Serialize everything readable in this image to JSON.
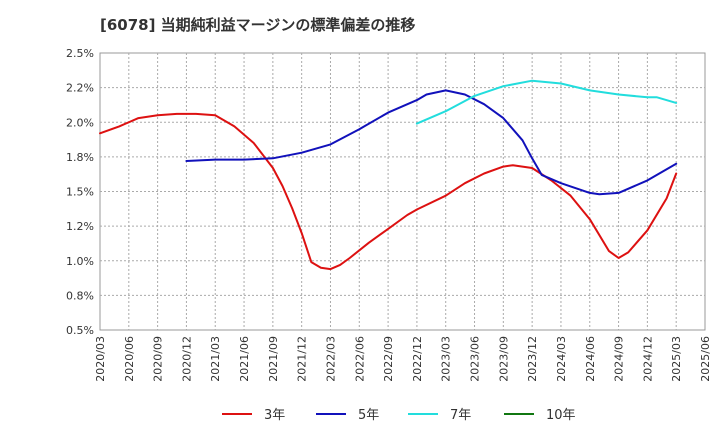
{
  "chart_data": {
    "type": "line",
    "title": "[6078]  当期純利益マージンの標準偏差の推移",
    "ylim": [
      0.5,
      2.5
    ],
    "y_ticks": [
      "0.5%",
      "0.8%",
      "1.0%",
      "1.2%",
      "1.5%",
      "1.8%",
      "2.0%",
      "2.2%",
      "2.5%"
    ],
    "x_ticks": [
      "2020/03",
      "2020/06",
      "2020/09",
      "2020/12",
      "2021/03",
      "2021/06",
      "2021/09",
      "2021/12",
      "2022/03",
      "2022/06",
      "2022/09",
      "2022/12",
      "2023/03",
      "2023/06",
      "2023/09",
      "2023/12",
      "2024/03",
      "2024/06",
      "2024/09",
      "2024/12",
      "2025/03",
      "2025/06"
    ],
    "grid": true,
    "legend_position": "bottom",
    "series": [
      {
        "name": "3年",
        "color": "#dd1111",
        "values": [
          [
            "2020/03",
            1.92
          ],
          [
            "2020/05",
            1.97
          ],
          [
            "2020/07",
            2.03
          ],
          [
            "2020/09",
            2.05
          ],
          [
            "2020/11",
            2.06
          ],
          [
            "2021/01",
            2.06
          ],
          [
            "2021/03",
            2.05
          ],
          [
            "2021/05",
            1.97
          ],
          [
            "2021/07",
            1.85
          ],
          [
            "2021/09",
            1.67
          ],
          [
            "2021/10",
            1.54
          ],
          [
            "2021/11",
            1.38
          ],
          [
            "2021/12",
            1.2
          ],
          [
            "2022/01",
            0.99
          ],
          [
            "2022/02",
            0.95
          ],
          [
            "2022/03",
            0.94
          ],
          [
            "2022/04",
            0.97
          ],
          [
            "2022/05",
            1.02
          ],
          [
            "2022/07",
            1.13
          ],
          [
            "2022/09",
            1.23
          ],
          [
            "2022/11",
            1.33
          ],
          [
            "2022/12",
            1.37
          ],
          [
            "2023/03",
            1.47
          ],
          [
            "2023/05",
            1.56
          ],
          [
            "2023/07",
            1.63
          ],
          [
            "2023/09",
            1.68
          ],
          [
            "2023/10",
            1.69
          ],
          [
            "2023/12",
            1.67
          ],
          [
            "2024/02",
            1.58
          ],
          [
            "2024/04",
            1.47
          ],
          [
            "2024/06",
            1.3
          ],
          [
            "2024/08",
            1.07
          ],
          [
            "2024/09",
            1.02
          ],
          [
            "2024/10",
            1.06
          ],
          [
            "2024/12",
            1.22
          ],
          [
            "2025/02",
            1.45
          ],
          [
            "2025/03",
            1.63
          ]
        ]
      },
      {
        "name": "5年",
        "color": "#1111bb",
        "values": [
          [
            "2020/12",
            1.72
          ],
          [
            "2021/03",
            1.73
          ],
          [
            "2021/06",
            1.73
          ],
          [
            "2021/09",
            1.74
          ],
          [
            "2021/12",
            1.78
          ],
          [
            "2022/03",
            1.84
          ],
          [
            "2022/06",
            1.95
          ],
          [
            "2022/09",
            2.07
          ],
          [
            "2022/12",
            2.16
          ],
          [
            "2023/01",
            2.2
          ],
          [
            "2023/03",
            2.23
          ],
          [
            "2023/05",
            2.2
          ],
          [
            "2023/07",
            2.13
          ],
          [
            "2023/09",
            2.03
          ],
          [
            "2023/11",
            1.87
          ],
          [
            "2023/12",
            1.74
          ],
          [
            "2024/01",
            1.62
          ],
          [
            "2024/03",
            1.56
          ],
          [
            "2024/06",
            1.49
          ],
          [
            "2024/07",
            1.48
          ],
          [
            "2024/09",
            1.49
          ],
          [
            "2024/12",
            1.58
          ],
          [
            "2025/03",
            1.7
          ]
        ]
      },
      {
        "name": "7年",
        "color": "#22dddd",
        "values": [
          [
            "2022/12",
            1.99
          ],
          [
            "2023/03",
            2.08
          ],
          [
            "2023/06",
            2.19
          ],
          [
            "2023/09",
            2.26
          ],
          [
            "2023/12",
            2.3
          ],
          [
            "2024/03",
            2.28
          ],
          [
            "2024/06",
            2.23
          ],
          [
            "2024/09",
            2.2
          ],
          [
            "2024/12",
            2.18
          ],
          [
            "2025/01",
            2.18
          ],
          [
            "2025/03",
            2.14
          ]
        ]
      },
      {
        "name": "10年",
        "color": "#117711",
        "values": []
      }
    ]
  }
}
